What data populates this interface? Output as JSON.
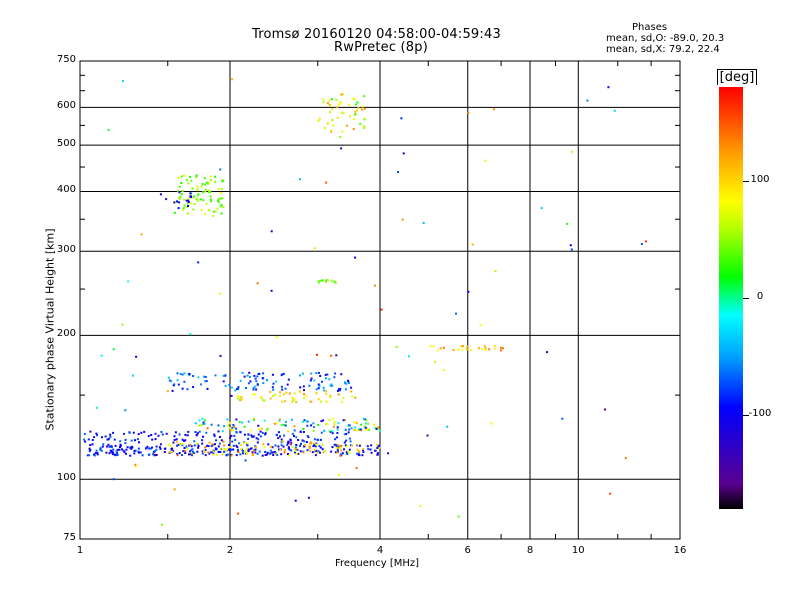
{
  "header": {
    "title_line1": "Tromsø 20160120 04:58:00-04:59:43",
    "title_line2": "RwPretec (8p)",
    "stats_title": "Phases",
    "stats_line1": "mean, sd,O: -89.0, 20.3",
    "stats_line2": "mean, sd,X: 79.2, 22.4"
  },
  "colors": {
    "colormap": [
      "#000000",
      "#5a0090",
      "#0000ff",
      "#00a0ff",
      "#00ffff",
      "#00ff00",
      "#b0ff00",
      "#ffff00",
      "#ffa000",
      "#ff0000"
    ]
  },
  "colorbar": {
    "label": "[deg]",
    "ticks": [
      100,
      0,
      -100
    ],
    "range": [
      -180,
      180
    ]
  },
  "chart_data": {
    "type": "scatter",
    "xlabel": "Frequency [MHz]",
    "ylabel": "Stationary phase Virtual Height [km]",
    "x_scale": "log",
    "y_scale": "log",
    "xlim": [
      1,
      16
    ],
    "ylim": [
      75,
      750
    ],
    "x_ticks": [
      1,
      2,
      4,
      6,
      8,
      10,
      16
    ],
    "y_ticks": [
      75,
      100,
      200,
      300,
      400,
      500,
      600,
      750
    ],
    "grid": true,
    "point_clusters": [
      {
        "x_range": [
          1.0,
          4.0
        ],
        "y_range": [
          112,
          118
        ],
        "phase_range": [
          -120,
          -60
        ],
        "count": 260
      },
      {
        "x_range": [
          1.0,
          3.5
        ],
        "y_range": [
          118,
          126
        ],
        "phase_range": [
          -120,
          -60
        ],
        "count": 160
      },
      {
        "x_range": [
          1.5,
          4.0
        ],
        "y_range": [
          112,
          120
        ],
        "phase_range": [
          60,
          150
        ],
        "count": 90
      },
      {
        "x_range": [
          1.7,
          4.0
        ],
        "y_range": [
          126,
          134
        ],
        "phase_range": [
          -110,
          140
        ],
        "count": 110
      },
      {
        "x_range": [
          1.5,
          3.5
        ],
        "y_range": [
          153,
          167
        ],
        "phase_range": [
          -110,
          -30
        ],
        "count": 120
      },
      {
        "x_range": [
          2.0,
          3.6
        ],
        "y_range": [
          145,
          153
        ],
        "phase_range": [
          50,
          130
        ],
        "count": 50
      },
      {
        "x_range": [
          1.55,
          1.95
        ],
        "y_range": [
          355,
          435
        ],
        "phase_range": [
          20,
          80
        ],
        "count": 90
      },
      {
        "x_range": [
          1.45,
          1.7
        ],
        "y_range": [
          360,
          400
        ],
        "phase_range": [
          -130,
          -90
        ],
        "count": 15
      },
      {
        "x_range": [
          3.0,
          3.75
        ],
        "y_range": [
          530,
          640
        ],
        "phase_range": [
          20,
          130
        ],
        "count": 50
      },
      {
        "x_range": [
          3.0,
          3.3
        ],
        "y_range": [
          257,
          262
        ],
        "phase_range": [
          20,
          60
        ],
        "count": 12
      },
      {
        "x_range": [
          5.0,
          7.2
        ],
        "y_range": [
          186,
          190
        ],
        "phase_range": [
          80,
          150
        ],
        "count": 25
      },
      {
        "x_range": [
          1.0,
          15.9
        ],
        "y_range": [
          80,
          700
        ],
        "phase_range": [
          -150,
          170
        ],
        "count": 90
      }
    ]
  }
}
